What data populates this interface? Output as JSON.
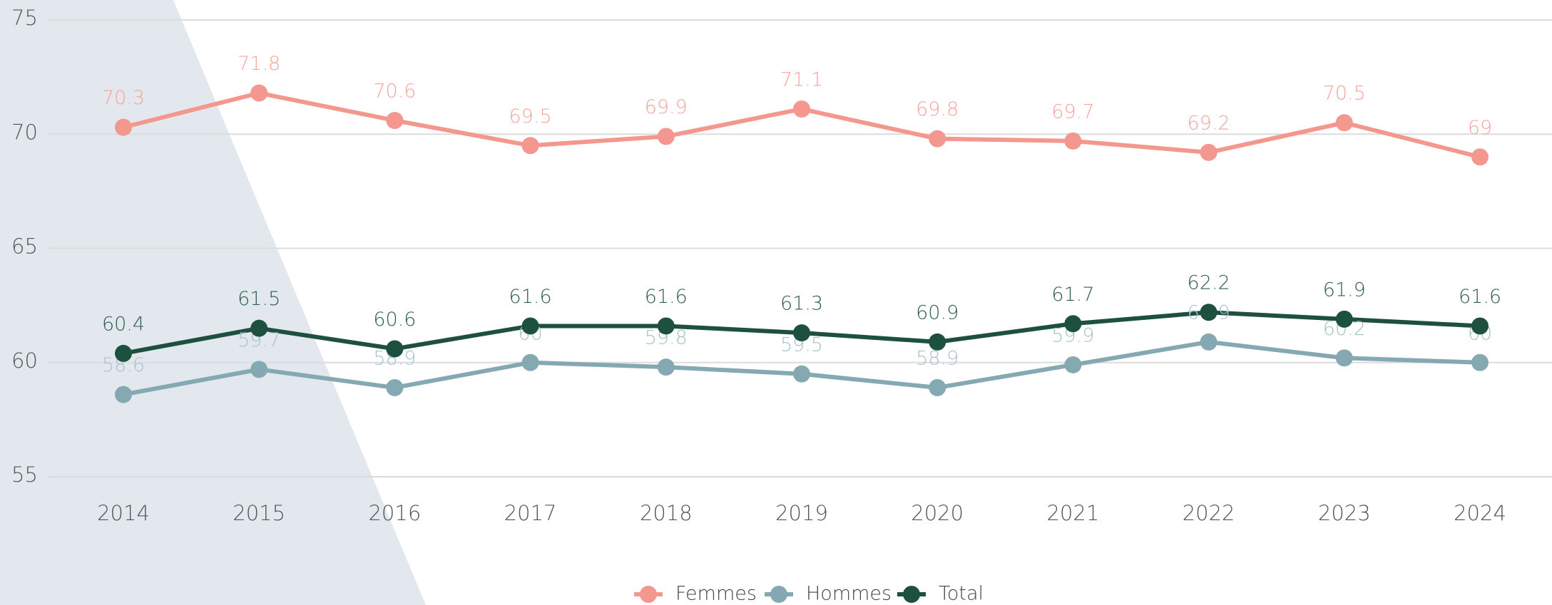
{
  "chart_data": {
    "type": "line",
    "x": [
      2014,
      2015,
      2016,
      2017,
      2018,
      2019,
      2020,
      2021,
      2022,
      2023,
      2024
    ],
    "series": [
      {
        "name": "Femmes",
        "color": "#f4978e",
        "values": [
          70.3,
          71.8,
          70.6,
          69.5,
          69.9,
          71.1,
          69.8,
          69.7,
          69.2,
          70.5,
          69
        ]
      },
      {
        "name": "Hommes",
        "color": "#85a9b3",
        "values": [
          58.6,
          59.7,
          58.9,
          60,
          59.8,
          59.5,
          58.9,
          59.9,
          60.9,
          60.2,
          60
        ]
      },
      {
        "name": "Total",
        "color": "#1e5040",
        "values": [
          60.4,
          61.5,
          60.6,
          61.6,
          61.6,
          61.3,
          60.9,
          61.7,
          62.2,
          61.9,
          61.6
        ]
      }
    ],
    "ylim": [
      55,
      75
    ],
    "yticks": [
      55,
      60,
      65,
      70,
      75
    ],
    "grid": true,
    "legend": "bottom"
  }
}
